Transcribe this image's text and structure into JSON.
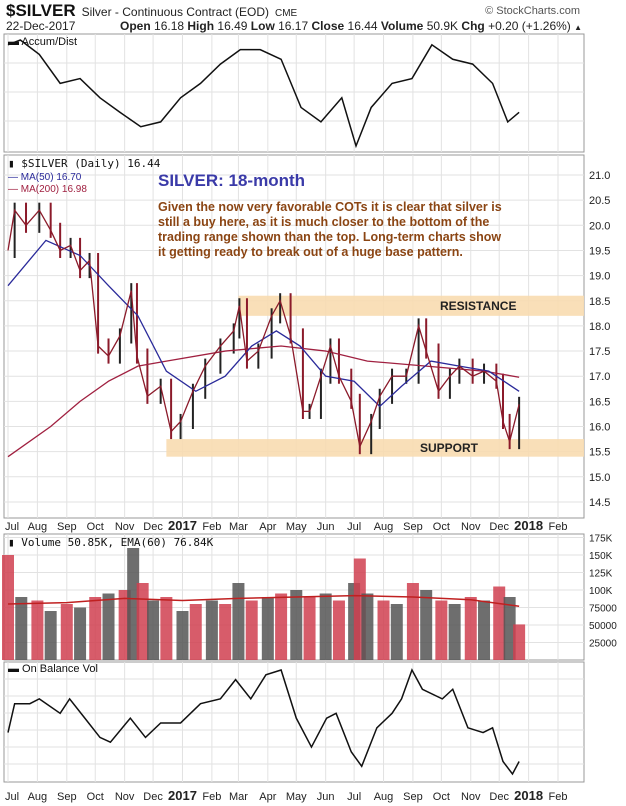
{
  "header": {
    "symbol": "$SILVER",
    "description": "Silver - Continuous Contract (EOD)",
    "exchange": "CME",
    "brand": "© StockCharts.com",
    "date": "22-Dec-2017",
    "open_label": "Open",
    "open": "16.18",
    "high_label": "High",
    "high": "16.49",
    "low_label": "Low",
    "low": "16.17",
    "close_label": "Close",
    "close": "16.44",
    "volume_label": "Volume",
    "volume": "50.9K",
    "chg_label": "Chg",
    "chg": "+0.20 (+1.26%)",
    "chg_icon": "triangle-up-icon"
  },
  "colors": {
    "price": "#8b1a2a",
    "ma50": "#2a2a9a",
    "ma200": "#a02040",
    "band": "#f8dcb0",
    "annotation": "#8b4513",
    "title": "#3a3aa8",
    "volume_up": "#d04050",
    "volume_down": "#555555",
    "ema": "#c02020"
  },
  "x_axis": {
    "labels": [
      "Jul",
      "Aug",
      "Sep",
      "Oct",
      "Nov",
      "Dec",
      "2017",
      "Feb",
      "Mar",
      "Apr",
      "May",
      "Jun",
      "Jul",
      "Aug",
      "Sep",
      "Oct",
      "Nov",
      "Dec",
      "2018",
      "Feb"
    ],
    "dates": [
      "2016-07-01",
      "2016-08-01",
      "2016-09-01",
      "2016-10-01",
      "2016-11-01",
      "2016-12-01",
      "2017-01-01",
      "2017-02-01",
      "2017-03-01",
      "2017-04-01",
      "2017-05-01",
      "2017-06-01",
      "2017-07-01",
      "2017-08-01",
      "2017-09-01",
      "2017-10-01",
      "2017-11-01",
      "2017-12-01",
      "2018-01-01",
      "2018-02-01"
    ],
    "bold": [
      "2017",
      "2018"
    ]
  },
  "chart_data": [
    {
      "type": "line",
      "legend": "Accum/Dist",
      "series": [
        {
          "name": "Accum/Dist",
          "points": [
            [
              "2016-07-01",
              105
            ],
            [
              "2016-07-14",
              110
            ],
            [
              "2016-08-03",
              95
            ],
            [
              "2016-08-25",
              65
            ],
            [
              "2016-09-15",
              70
            ],
            [
              "2016-10-06",
              50
            ],
            [
              "2016-10-27",
              35
            ],
            [
              "2016-11-18",
              20
            ],
            [
              "2016-12-09",
              25
            ],
            [
              "2016-12-30",
              50
            ],
            [
              "2017-01-20",
              65
            ],
            [
              "2017-02-10",
              85
            ],
            [
              "2017-03-03",
              100
            ],
            [
              "2017-03-24",
              100
            ],
            [
              "2017-04-15",
              90
            ],
            [
              "2017-05-06",
              40
            ],
            [
              "2017-05-27",
              25
            ],
            [
              "2017-06-18",
              50
            ],
            [
              "2017-07-03",
              0
            ],
            [
              "2017-07-19",
              40
            ],
            [
              "2017-08-10",
              65
            ],
            [
              "2017-08-31",
              70
            ],
            [
              "2017-09-21",
              105
            ],
            [
              "2017-10-13",
              90
            ],
            [
              "2017-11-03",
              85
            ],
            [
              "2017-11-24",
              65
            ],
            [
              "2017-12-10",
              25
            ],
            [
              "2017-12-22",
              35
            ]
          ]
        }
      ]
    },
    {
      "type": "line",
      "legend": "$SILVER (Daily) 16.44",
      "ylim": [
        14.3,
        21.4
      ],
      "yticks": [
        14.5,
        15.0,
        15.5,
        16.0,
        16.5,
        17.0,
        17.5,
        18.0,
        18.5,
        19.0,
        19.5,
        20.0,
        20.5,
        21.0
      ],
      "ytick_labels": [
        "14.5",
        "15.0",
        "15.5",
        "16.0",
        "16.5",
        "17.0",
        "17.5",
        "18.0",
        "18.5",
        "19.0",
        "19.5",
        "20.0",
        "20.5",
        "21.0"
      ],
      "series": [
        {
          "name": "$SILVER (Daily) 16.44",
          "points": [
            [
              "2016-07-01",
              19.5
            ],
            [
              "2016-07-08",
              20.3
            ],
            [
              "2016-07-20",
              20.0
            ],
            [
              "2016-08-03",
              20.3
            ],
            [
              "2016-08-15",
              19.9
            ],
            [
              "2016-08-25",
              19.5
            ],
            [
              "2016-09-05",
              19.6
            ],
            [
              "2016-09-15",
              19.1
            ],
            [
              "2016-09-25",
              19.3
            ],
            [
              "2016-10-04",
              17.6
            ],
            [
              "2016-10-15",
              17.4
            ],
            [
              "2016-10-27",
              17.8
            ],
            [
              "2016-11-08",
              18.7
            ],
            [
              "2016-11-14",
              17.4
            ],
            [
              "2016-11-25",
              16.6
            ],
            [
              "2016-12-09",
              16.8
            ],
            [
              "2016-12-20",
              15.9
            ],
            [
              "2016-12-30",
              16.1
            ],
            [
              "2017-01-12",
              16.7
            ],
            [
              "2017-01-25",
              17.2
            ],
            [
              "2017-02-10",
              17.6
            ],
            [
              "2017-02-24",
              17.9
            ],
            [
              "2017-03-02",
              18.4
            ],
            [
              "2017-03-10",
              17.3
            ],
            [
              "2017-03-22",
              17.5
            ],
            [
              "2017-04-05",
              18.2
            ],
            [
              "2017-04-14",
              18.5
            ],
            [
              "2017-04-25",
              17.8
            ],
            [
              "2017-05-08",
              16.3
            ],
            [
              "2017-05-15",
              16.3
            ],
            [
              "2017-05-27",
              17.0
            ],
            [
              "2017-06-06",
              17.6
            ],
            [
              "2017-06-15",
              17.0
            ],
            [
              "2017-06-28",
              16.5
            ],
            [
              "2017-07-07",
              15.6
            ],
            [
              "2017-07-19",
              16.1
            ],
            [
              "2017-07-28",
              16.6
            ],
            [
              "2017-08-10",
              17.0
            ],
            [
              "2017-08-25",
              17.0
            ],
            [
              "2017-09-07",
              18.0
            ],
            [
              "2017-09-15",
              17.5
            ],
            [
              "2017-09-28",
              16.7
            ],
            [
              "2017-10-10",
              17.0
            ],
            [
              "2017-10-20",
              17.2
            ],
            [
              "2017-11-03",
              17.0
            ],
            [
              "2017-11-15",
              17.1
            ],
            [
              "2017-11-28",
              16.9
            ],
            [
              "2017-12-05",
              16.1
            ],
            [
              "2017-12-12",
              15.7
            ],
            [
              "2017-12-22",
              16.44
            ]
          ]
        },
        {
          "name": "MA(50) 16.70",
          "points": [
            [
              "2016-07-01",
              18.8
            ],
            [
              "2016-08-10",
              19.7
            ],
            [
              "2016-09-15",
              19.4
            ],
            [
              "2016-10-15",
              18.8
            ],
            [
              "2016-11-15",
              18.2
            ],
            [
              "2016-12-15",
              17.1
            ],
            [
              "2017-01-15",
              16.7
            ],
            [
              "2017-02-15",
              17.0
            ],
            [
              "2017-03-15",
              17.6
            ],
            [
              "2017-04-10",
              17.9
            ],
            [
              "2017-05-05",
              17.6
            ],
            [
              "2017-06-01",
              17.0
            ],
            [
              "2017-07-01",
              16.9
            ],
            [
              "2017-07-28",
              16.4
            ],
            [
              "2017-08-20",
              16.8
            ],
            [
              "2017-09-20",
              17.3
            ],
            [
              "2017-10-20",
              17.2
            ],
            [
              "2017-11-20",
              17.1
            ],
            [
              "2017-12-22",
              16.7
            ]
          ]
        },
        {
          "name": "MA(200) 16.98",
          "points": [
            [
              "2016-07-01",
              15.4
            ],
            [
              "2016-08-15",
              16.0
            ],
            [
              "2016-09-15",
              16.5
            ],
            [
              "2016-10-15",
              16.9
            ],
            [
              "2016-11-15",
              17.2
            ],
            [
              "2016-12-15",
              17.3
            ],
            [
              "2017-02-15",
              17.5
            ],
            [
              "2017-04-15",
              17.6
            ],
            [
              "2017-06-01",
              17.5
            ],
            [
              "2017-07-15",
              17.3
            ],
            [
              "2017-09-15",
              17.2
            ],
            [
              "2017-11-15",
              17.1
            ],
            [
              "2017-12-22",
              16.98
            ]
          ]
        }
      ],
      "bands": [
        {
          "label": "RESISTANCE",
          "from": 18.2,
          "to": 18.6,
          "start": "2017-03-01"
        },
        {
          "label": "SUPPORT",
          "from": 15.4,
          "to": 15.75,
          "start": "2016-12-15"
        }
      ],
      "title": "SILVER: 18-month",
      "annotation": [
        "Given the now very favorable COTs it is clear that silver is",
        "still a buy here, as it is much closer to the bottom of the",
        "trading range shown than the top. Long-term charts show",
        "it getting ready to break out of a huge base pattern."
      ]
    },
    {
      "type": "bar",
      "legend": "Volume 50.85K, EMA(60) 76.84K",
      "ylim": [
        0,
        180000
      ],
      "yticks": [
        25000,
        50000,
        75000,
        100000,
        125000,
        150000,
        175000
      ],
      "ytick_labels": [
        "25000",
        "50000",
        "75000",
        "100K",
        "125K",
        "150K",
        "175K"
      ],
      "bars": [
        [
          "2016-07-01",
          150000
        ],
        [
          "2016-07-15",
          90000
        ],
        [
          "2016-08-01",
          85000
        ],
        [
          "2016-08-15",
          70000
        ],
        [
          "2016-09-01",
          80000
        ],
        [
          "2016-09-15",
          75000
        ],
        [
          "2016-10-01",
          90000
        ],
        [
          "2016-10-15",
          95000
        ],
        [
          "2016-11-01",
          100000
        ],
        [
          "2016-11-10",
          160000
        ],
        [
          "2016-11-20",
          110000
        ],
        [
          "2016-12-01",
          85000
        ],
        [
          "2016-12-15",
          90000
        ],
        [
          "2017-01-01",
          70000
        ],
        [
          "2017-01-15",
          80000
        ],
        [
          "2017-02-01",
          85000
        ],
        [
          "2017-02-15",
          80000
        ],
        [
          "2017-03-01",
          110000
        ],
        [
          "2017-03-15",
          85000
        ],
        [
          "2017-04-01",
          90000
        ],
        [
          "2017-04-15",
          95000
        ],
        [
          "2017-05-01",
          100000
        ],
        [
          "2017-05-15",
          90000
        ],
        [
          "2017-06-01",
          95000
        ],
        [
          "2017-06-15",
          85000
        ],
        [
          "2017-07-01",
          110000
        ],
        [
          "2017-07-07",
          145000
        ],
        [
          "2017-07-15",
          95000
        ],
        [
          "2017-08-01",
          85000
        ],
        [
          "2017-08-15",
          80000
        ],
        [
          "2017-09-01",
          110000
        ],
        [
          "2017-09-15",
          100000
        ],
        [
          "2017-10-01",
          85000
        ],
        [
          "2017-10-15",
          80000
        ],
        [
          "2017-11-01",
          90000
        ],
        [
          "2017-11-15",
          85000
        ],
        [
          "2017-12-01",
          105000
        ],
        [
          "2017-12-12",
          90000
        ],
        [
          "2017-12-22",
          50850
        ]
      ],
      "ema": [
        [
          "2016-07-01",
          80000
        ],
        [
          "2016-09-01",
          82000
        ],
        [
          "2016-11-01",
          88000
        ],
        [
          "2017-01-01",
          85000
        ],
        [
          "2017-03-01",
          88000
        ],
        [
          "2017-05-01",
          90000
        ],
        [
          "2017-07-01",
          92000
        ],
        [
          "2017-09-01",
          90000
        ],
        [
          "2017-11-01",
          86000
        ],
        [
          "2017-12-22",
          76840
        ]
      ]
    },
    {
      "type": "line",
      "legend": "On Balance Vol",
      "series": [
        {
          "name": "On Balance Vol",
          "points": [
            [
              "2016-07-01",
              45
            ],
            [
              "2016-07-08",
              75
            ],
            [
              "2016-07-24",
              75
            ],
            [
              "2016-08-03",
              80
            ],
            [
              "2016-08-25",
              65
            ],
            [
              "2016-09-04",
              80
            ],
            [
              "2016-09-20",
              60
            ],
            [
              "2016-10-06",
              40
            ],
            [
              "2016-10-17",
              35
            ],
            [
              "2016-11-07",
              60
            ],
            [
              "2016-11-23",
              40
            ],
            [
              "2016-12-09",
              55
            ],
            [
              "2016-12-30",
              55
            ],
            [
              "2017-01-20",
              75
            ],
            [
              "2017-02-10",
              80
            ],
            [
              "2017-02-26",
              100
            ],
            [
              "2017-03-14",
              80
            ],
            [
              "2017-03-30",
              105
            ],
            [
              "2017-04-15",
              110
            ],
            [
              "2017-05-01",
              60
            ],
            [
              "2017-05-17",
              30
            ],
            [
              "2017-06-02",
              60
            ],
            [
              "2017-06-12",
              65
            ],
            [
              "2017-06-28",
              25
            ],
            [
              "2017-07-09",
              10
            ],
            [
              "2017-07-25",
              50
            ],
            [
              "2017-08-10",
              65
            ],
            [
              "2017-08-20",
              80
            ],
            [
              "2017-08-31",
              110
            ],
            [
              "2017-09-11",
              90
            ],
            [
              "2017-10-02",
              80
            ],
            [
              "2017-10-13",
              90
            ],
            [
              "2017-10-29",
              50
            ],
            [
              "2017-11-14",
              45
            ],
            [
              "2017-11-24",
              50
            ],
            [
              "2017-12-05",
              15
            ],
            [
              "2017-12-15",
              2
            ],
            [
              "2017-12-22",
              15
            ]
          ]
        }
      ]
    }
  ]
}
